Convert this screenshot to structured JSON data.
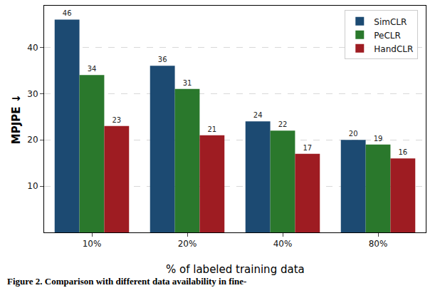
{
  "chart_data": {
    "type": "bar",
    "x_label": "% of labeled training data",
    "y_label": "MPJPE ↓",
    "caption": "Figure 2. Comparison with different data availability in fine-",
    "categories": [
      "10%",
      "20%",
      "40%",
      "80%"
    ],
    "series": [
      {
        "name": "SimCLR",
        "color": "#1c4a72",
        "values": [
          46,
          36,
          24,
          20
        ]
      },
      {
        "name": "PeCLR",
        "color": "#2a782c",
        "values": [
          34,
          31,
          22,
          19
        ]
      },
      {
        "name": "HandCLR",
        "color": "#9e1c22",
        "values": [
          23,
          21,
          17,
          16
        ]
      }
    ],
    "ylim": [
      0,
      49
    ],
    "yticks": [
      10,
      20,
      30,
      40
    ],
    "grid": true,
    "legend": "upper right",
    "data_labels": true
  }
}
